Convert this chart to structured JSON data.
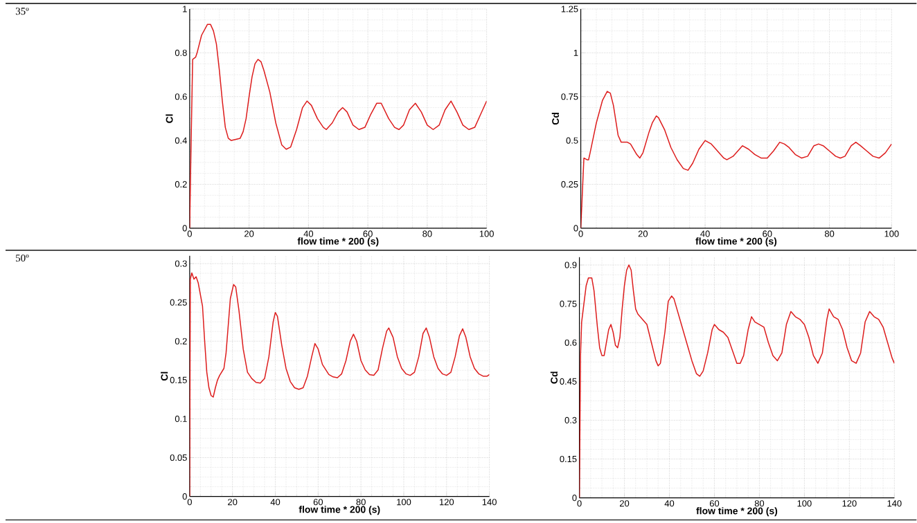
{
  "chart_data": [
    {
      "type": "line",
      "xlabel": "flow time * 200 (s)",
      "ylabel": "Cl",
      "annotations": [
        "35º"
      ],
      "xlim": [
        0,
        100
      ],
      "ylim": [
        0,
        1
      ],
      "xticks": [
        0,
        20,
        40,
        60,
        80,
        100
      ],
      "yticks": [
        0,
        0.2,
        0.4,
        0.6,
        0.8,
        1
      ],
      "grid": true,
      "series": [
        {
          "color": "#dd1c1c",
          "x": [
            0,
            0.5,
            1,
            2,
            2.5,
            4,
            6,
            7,
            8,
            9,
            10,
            11,
            12,
            13,
            14,
            17,
            18,
            19,
            20,
            21,
            22,
            23,
            24,
            25,
            27,
            29,
            31,
            32.5,
            34,
            36,
            38,
            39.5,
            41,
            43,
            45,
            46,
            48,
            50,
            51.5,
            53,
            55,
            57,
            59,
            61,
            63,
            64.5,
            67,
            69,
            70.5,
            72,
            74,
            76,
            78,
            80,
            82,
            84,
            86,
            88,
            90,
            92,
            94,
            96,
            98,
            100
          ],
          "values": [
            0,
            0.4,
            0.77,
            0.78,
            0.8,
            0.88,
            0.93,
            0.93,
            0.9,
            0.84,
            0.72,
            0.58,
            0.46,
            0.41,
            0.4,
            0.41,
            0.44,
            0.5,
            0.6,
            0.69,
            0.75,
            0.77,
            0.76,
            0.72,
            0.62,
            0.48,
            0.38,
            0.36,
            0.37,
            0.45,
            0.55,
            0.58,
            0.56,
            0.5,
            0.46,
            0.45,
            0.48,
            0.53,
            0.55,
            0.53,
            0.47,
            0.45,
            0.46,
            0.52,
            0.57,
            0.57,
            0.5,
            0.46,
            0.45,
            0.47,
            0.54,
            0.57,
            0.53,
            0.47,
            0.45,
            0.47,
            0.54,
            0.58,
            0.53,
            0.47,
            0.45,
            0.46,
            0.52,
            0.58
          ]
        }
      ]
    },
    {
      "type": "line",
      "xlabel": "flow time * 200 (s)",
      "ylabel": "Cd",
      "xlim": [
        0,
        100
      ],
      "ylim": [
        0,
        1.25
      ],
      "xticks": [
        0,
        20,
        40,
        60,
        80,
        100
      ],
      "yticks": [
        0,
        0.25,
        0.5,
        0.75,
        1,
        1.25
      ],
      "grid": true,
      "series": [
        {
          "color": "#dd1c1c",
          "x": [
            0,
            1,
            2,
            2.5,
            3,
            5,
            7,
            8.5,
            9.5,
            10.5,
            12,
            13,
            15,
            16,
            18,
            19,
            20,
            22,
            23,
            24.3,
            25,
            27,
            29,
            31,
            33,
            34.5,
            36,
            38,
            40,
            42,
            44,
            46,
            47,
            49,
            52,
            54,
            56,
            58,
            60,
            62,
            64,
            65.5,
            67,
            69,
            71,
            73,
            75,
            76.5,
            78,
            80,
            82,
            83.5,
            85,
            87,
            88.5,
            90,
            92,
            94,
            96,
            98,
            100
          ],
          "values": [
            0,
            0.4,
            0.39,
            0.39,
            0.43,
            0.6,
            0.73,
            0.78,
            0.77,
            0.7,
            0.53,
            0.49,
            0.49,
            0.48,
            0.42,
            0.4,
            0.43,
            0.55,
            0.6,
            0.64,
            0.63,
            0.56,
            0.46,
            0.39,
            0.34,
            0.33,
            0.37,
            0.45,
            0.5,
            0.48,
            0.44,
            0.4,
            0.39,
            0.41,
            0.47,
            0.45,
            0.42,
            0.4,
            0.4,
            0.44,
            0.49,
            0.48,
            0.46,
            0.42,
            0.4,
            0.41,
            0.47,
            0.48,
            0.47,
            0.44,
            0.41,
            0.4,
            0.41,
            0.47,
            0.49,
            0.47,
            0.44,
            0.41,
            0.4,
            0.43,
            0.48
          ]
        }
      ]
    },
    {
      "type": "line",
      "xlabel": "flow time * 200 (s)",
      "ylabel": "Cl",
      "annotations": [
        "50º"
      ],
      "xlim": [
        0,
        140
      ],
      "ylim": [
        0,
        0.31
      ],
      "xticks": [
        0,
        20,
        40,
        60,
        80,
        100,
        120,
        140
      ],
      "yticks": [
        0,
        0.05,
        0.1,
        0.15,
        0.2,
        0.25,
        0.3
      ],
      "grid": true,
      "series": [
        {
          "color": "#dd1c1c",
          "x": [
            0,
            0.3,
            1,
            2,
            3,
            4,
            5,
            6,
            7,
            8,
            9,
            10,
            11,
            12,
            13,
            14,
            16,
            17,
            18,
            19,
            20.5,
            21.5,
            23,
            25,
            27,
            29,
            31,
            33,
            35,
            37,
            39,
            40,
            41,
            43,
            45,
            47,
            49,
            51,
            53,
            55,
            57,
            58.5,
            60,
            62,
            65,
            67,
            69,
            71,
            73,
            75,
            76.5,
            78,
            80,
            82,
            84,
            86,
            88,
            90,
            92,
            93,
            95,
            97,
            99,
            101,
            103,
            105,
            107,
            109,
            110.5,
            112,
            114,
            116,
            118,
            120,
            122,
            124,
            126,
            127.5,
            129,
            131,
            133,
            135,
            137,
            139,
            140
          ],
          "values": [
            0,
            0.28,
            0.288,
            0.28,
            0.283,
            0.275,
            0.26,
            0.245,
            0.2,
            0.16,
            0.14,
            0.13,
            0.128,
            0.14,
            0.15,
            0.156,
            0.165,
            0.185,
            0.22,
            0.255,
            0.273,
            0.27,
            0.24,
            0.19,
            0.16,
            0.152,
            0.147,
            0.146,
            0.152,
            0.18,
            0.225,
            0.237,
            0.232,
            0.195,
            0.165,
            0.148,
            0.14,
            0.138,
            0.14,
            0.155,
            0.18,
            0.197,
            0.19,
            0.17,
            0.157,
            0.154,
            0.153,
            0.158,
            0.175,
            0.2,
            0.209,
            0.2,
            0.175,
            0.163,
            0.157,
            0.156,
            0.163,
            0.19,
            0.213,
            0.217,
            0.205,
            0.18,
            0.165,
            0.158,
            0.156,
            0.16,
            0.18,
            0.21,
            0.217,
            0.205,
            0.18,
            0.165,
            0.158,
            0.156,
            0.16,
            0.18,
            0.207,
            0.216,
            0.205,
            0.18,
            0.165,
            0.158,
            0.155,
            0.155,
            0.157
          ]
        }
      ]
    },
    {
      "type": "line",
      "xlabel": "flow time * 200 (s)",
      "ylabel": "Cd",
      "xlim": [
        0,
        140
      ],
      "ylim": [
        0,
        0.93
      ],
      "xticks": [
        0,
        20,
        40,
        60,
        80,
        100,
        120,
        140
      ],
      "yticks": [
        0,
        0.15,
        0.3,
        0.45,
        0.6,
        0.75,
        0.9
      ],
      "grid": true,
      "series": [
        {
          "color": "#dd1c1c",
          "x": [
            0,
            0.5,
            1,
            2,
            3,
            4,
            5.5,
            6.5,
            8,
            9,
            10,
            11,
            12,
            13,
            14,
            15,
            16,
            17,
            18,
            19,
            20,
            21,
            22,
            23,
            24,
            25,
            26,
            28,
            30,
            32,
            34,
            35,
            36,
            38,
            39.5,
            41,
            42,
            44,
            46,
            48,
            50,
            52,
            53.5,
            55,
            57,
            59,
            60,
            62,
            64,
            66,
            68,
            70,
            71.5,
            73,
            75,
            76.5,
            78,
            80,
            82,
            84,
            86,
            88,
            90,
            92,
            94,
            96,
            98,
            100,
            102,
            104,
            106,
            108,
            110,
            111,
            113,
            115,
            117,
            119,
            121,
            123,
            125,
            127,
            129,
            131,
            133,
            135,
            137,
            139,
            140
          ],
          "values": [
            0,
            0.55,
            0.68,
            0.75,
            0.82,
            0.85,
            0.85,
            0.8,
            0.66,
            0.58,
            0.55,
            0.55,
            0.6,
            0.65,
            0.67,
            0.64,
            0.59,
            0.58,
            0.62,
            0.73,
            0.82,
            0.88,
            0.9,
            0.88,
            0.8,
            0.73,
            0.71,
            0.69,
            0.67,
            0.6,
            0.53,
            0.51,
            0.52,
            0.64,
            0.76,
            0.78,
            0.77,
            0.71,
            0.65,
            0.59,
            0.53,
            0.48,
            0.47,
            0.49,
            0.56,
            0.65,
            0.67,
            0.65,
            0.64,
            0.62,
            0.57,
            0.52,
            0.52,
            0.55,
            0.65,
            0.7,
            0.68,
            0.67,
            0.66,
            0.6,
            0.55,
            0.53,
            0.56,
            0.67,
            0.72,
            0.7,
            0.69,
            0.67,
            0.62,
            0.55,
            0.52,
            0.56,
            0.69,
            0.73,
            0.7,
            0.69,
            0.65,
            0.58,
            0.53,
            0.52,
            0.56,
            0.68,
            0.72,
            0.7,
            0.69,
            0.66,
            0.6,
            0.54,
            0.52
          ]
        }
      ]
    }
  ]
}
